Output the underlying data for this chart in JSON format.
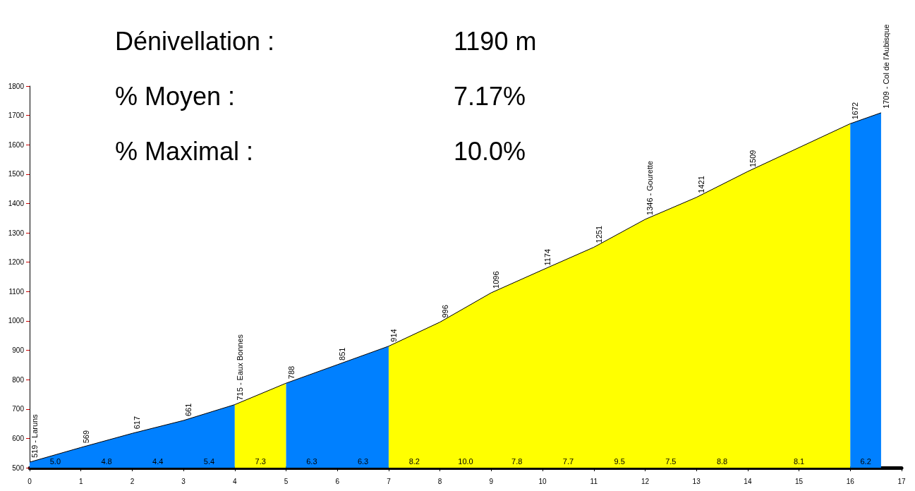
{
  "chart_data": {
    "type": "area",
    "series": [
      {
        "color": "#0080ff",
        "x": [
          0,
          1,
          2,
          3,
          4
        ],
        "values": [
          519,
          569,
          617,
          661,
          715
        ],
        "value_labels": [
          "519 - Laruns",
          "569",
          "617",
          "661",
          "715 - Eaux Bonnes"
        ]
      },
      {
        "color": "#ffff00",
        "x": [
          4,
          5
        ],
        "values": [
          715,
          788
        ],
        "value_labels": [
          null,
          "788"
        ]
      },
      {
        "color": "#0080ff",
        "x": [
          5,
          6,
          7
        ],
        "values": [
          788,
          851,
          914
        ],
        "value_labels": [
          null,
          "851",
          "914"
        ]
      },
      {
        "color": "#ffff00",
        "x": [
          7,
          8,
          9,
          10,
          11,
          12,
          13,
          14,
          16
        ],
        "values": [
          914,
          996,
          1096,
          1174,
          1251,
          1346,
          1421,
          1509,
          1672
        ],
        "value_labels": [
          null,
          "996",
          "1096",
          "1174",
          "1251",
          "1346 - Gourette",
          "1421",
          "1509",
          "1672"
        ]
      },
      {
        "color": "#0080ff",
        "x": [
          16,
          16.6
        ],
        "values": [
          1672,
          1709
        ],
        "value_labels": [
          null,
          "1709 - Col de l'Aubisque"
        ]
      }
    ],
    "xlim": [
      0,
      17
    ],
    "xticks": [
      0,
      1,
      2,
      3,
      4,
      5,
      6,
      7,
      8,
      9,
      10,
      11,
      12,
      13,
      14,
      15,
      16,
      17
    ],
    "ylim": [
      500,
      1800
    ],
    "yticks": [
      500,
      600,
      700,
      800,
      900,
      1000,
      1100,
      1200,
      1300,
      1400,
      1500,
      1600,
      1700,
      1800
    ],
    "grid": false,
    "annotations": [
      "Dénivellation :",
      "1190 m",
      "% Moyen :",
      "7.17%",
      "% Maximal :",
      "10.0%",
      "5.0",
      "4.8",
      "4.4",
      "5.4",
      "7.3",
      "6.3",
      "6.3",
      "8.2",
      "10.0",
      "7.8",
      "7.7",
      "9.5",
      "7.5",
      "8.8",
      "8.1",
      "6.2"
    ]
  }
}
